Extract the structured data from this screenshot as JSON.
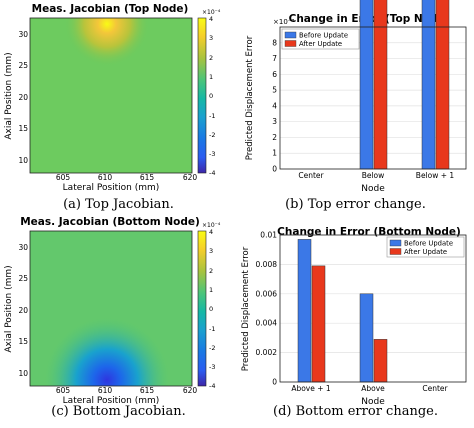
{
  "chart_data": [
    {
      "type": "heatmap",
      "title": "Meas. Jacobian (Top Node)",
      "xlabel": "Lateral Position (mm)",
      "ylabel": "Axial Position (mm)",
      "xticks": [
        "605",
        "610",
        "615",
        "620"
      ],
      "yticks": [
        "10",
        "15",
        "20",
        "25",
        "30"
      ],
      "xlim": [
        601,
        620
      ],
      "ylim": [
        9,
        35
      ],
      "colorbar": {
        "ticks": [
          "4",
          "3",
          "2",
          "1",
          "0",
          "-1",
          "-2",
          "-3",
          "-4"
        ],
        "exponent": "×10⁻⁴",
        "range": [
          -4,
          4
        ]
      },
      "hotspot": {
        "x": 610.5,
        "y": 33,
        "peak": 3.5,
        "sign": "positive"
      },
      "background_value": 0.4,
      "colors": {
        "low": "#3e26a8",
        "mid": "#1ec29a",
        "high": "#f9fb15"
      }
    },
    {
      "type": "bar",
      "title": "Change in Error (Top Node)",
      "xlabel": "Node",
      "ylabel": "Predicted Displacement Error",
      "categories": [
        "Center",
        "Below",
        "Below + 1"
      ],
      "series": [
        {
          "name": "Before Update",
          "values": [
            0,
            2.1,
            8.1
          ],
          "color": "#3b78e7"
        },
        {
          "name": "After Update",
          "values": [
            0,
            0.8,
            6.4
          ],
          "color": "#e8381c"
        }
      ],
      "yticks": [
        "0",
        "1",
        "2",
        "3",
        "4",
        "5",
        "6",
        "7",
        "8"
      ],
      "ylim": [
        0,
        9
      ],
      "exponent": "×10⁻³",
      "legend": "top-left",
      "grid": true
    },
    {
      "type": "heatmap",
      "title": "Meas. Jacobian (Bottom Node)",
      "xlabel": "Lateral Position (mm)",
      "ylabel": "Axial Position (mm)",
      "xticks": [
        "605",
        "610",
        "615",
        "620"
      ],
      "yticks": [
        "10",
        "15",
        "20",
        "25",
        "30"
      ],
      "xlim": [
        601,
        620
      ],
      "ylim": [
        9,
        35
      ],
      "colorbar": {
        "ticks": [
          "4",
          "3",
          "2",
          "1",
          "0",
          "-1",
          "-2",
          "-3",
          "-4"
        ],
        "exponent": "×10⁻⁴",
        "range": [
          -4,
          4
        ]
      },
      "hotspot": {
        "x": 610.5,
        "y": 10,
        "peak": -3.8,
        "sign": "negative"
      },
      "background_value": 0.3,
      "colors": {
        "low": "#3e26a8",
        "mid": "#1ec29a",
        "high": "#f9fb15"
      }
    },
    {
      "type": "bar",
      "title": "Change in Error (Bottom Node)",
      "xlabel": "Node",
      "ylabel": "Predicted Displacement Error",
      "categories": [
        "Above + 1",
        "Above",
        "Center"
      ],
      "series": [
        {
          "name": "Before Update",
          "values": [
            0.0097,
            0.006,
            0
          ],
          "color": "#3b78e7"
        },
        {
          "name": "After Update",
          "values": [
            0.0079,
            0.0029,
            0
          ],
          "color": "#e8381c"
        }
      ],
      "yticks": [
        "0",
        "0.002",
        "0.004",
        "0.006",
        "0.008",
        "0.01"
      ],
      "ylim": [
        0,
        0.01
      ],
      "legend": "top-right",
      "grid": true
    }
  ],
  "captions": {
    "a": "(a)  Top Jacobian.",
    "b": "(b)  Top error change.",
    "c": "(c)  Bottom Jacobian.",
    "d": "(d)  Bottom error change."
  }
}
